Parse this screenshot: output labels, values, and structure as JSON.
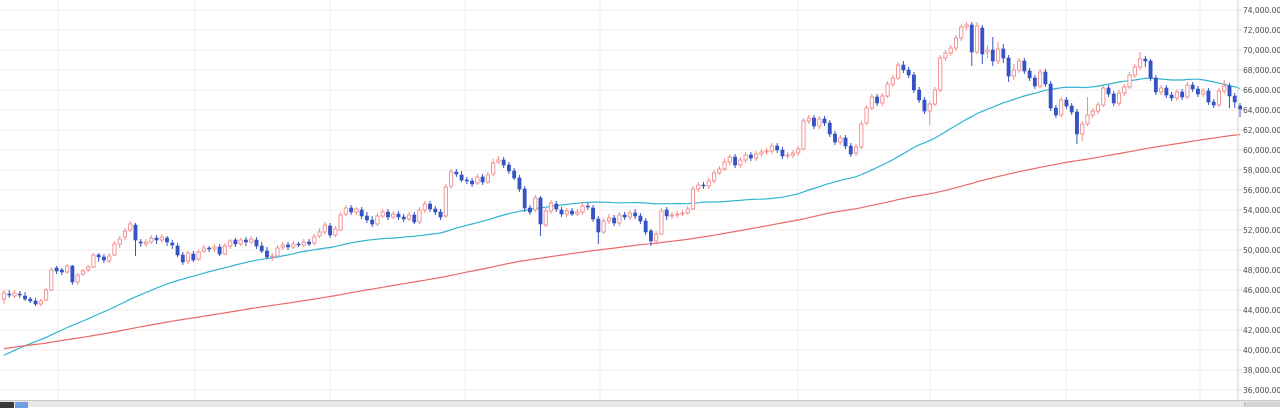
{
  "chart_data": {
    "type": "candlestick",
    "title": "",
    "xlabel": "",
    "ylabel": "",
    "ylim": [
      35600,
      74600
    ],
    "y_ticks": [
      "36,000.00",
      "38,000.00",
      "40,000.00",
      "42,000.00",
      "44,000.00",
      "46,000.00",
      "48,000.00",
      "50,000.00",
      "52,000.00",
      "54,000.00",
      "56,000.00",
      "58,000.00",
      "60,000.00",
      "62,000.00",
      "64,000.00",
      "66,000.00",
      "68,000.00",
      "70,000.00",
      "72,000.00",
      "74,000.00"
    ],
    "grid": true,
    "legend": "none",
    "candles": [
      [
        45.1,
        45.7,
        46.0,
        44.6
      ],
      [
        45.6,
        45.5,
        46.0,
        45.2
      ],
      [
        45.4,
        45.7,
        46.0,
        45.2
      ],
      [
        45.6,
        45.5,
        45.9,
        45.2
      ],
      [
        45.4,
        45.1,
        45.8,
        44.9
      ],
      [
        45.1,
        44.9,
        45.3,
        44.7
      ],
      [
        44.9,
        44.6,
        45.2,
        44.4
      ],
      [
        44.6,
        44.9,
        45.1,
        44.4
      ],
      [
        45.0,
        46.0,
        46.2,
        44.9
      ],
      [
        46.0,
        48.0,
        48.3,
        45.9
      ],
      [
        48.2,
        47.9,
        48.4,
        47.6
      ],
      [
        48.0,
        47.8,
        48.2,
        47.5
      ],
      [
        47.8,
        48.4,
        48.6,
        47.6
      ],
      [
        48.4,
        46.8,
        48.5,
        46.5
      ],
      [
        46.8,
        47.5,
        47.7,
        46.5
      ],
      [
        47.6,
        47.9,
        48.1,
        47.4
      ],
      [
        48.0,
        48.3,
        48.5,
        47.8
      ],
      [
        48.3,
        49.5,
        49.7,
        48.2
      ],
      [
        49.5,
        49.3,
        49.7,
        48.8
      ],
      [
        49.3,
        49.0,
        49.6,
        48.7
      ],
      [
        48.9,
        49.4,
        49.7,
        48.7
      ],
      [
        49.5,
        50.6,
        50.9,
        49.4
      ],
      [
        50.6,
        51.1,
        51.4,
        50.2
      ],
      [
        51.3,
        51.9,
        52.2,
        51.0
      ],
      [
        52.0,
        52.6,
        52.9,
        51.8
      ],
      [
        52.5,
        51.0,
        52.7,
        49.4
      ],
      [
        50.8,
        50.7,
        51.1,
        50.3
      ],
      [
        50.6,
        50.8,
        51.1,
        50.3
      ],
      [
        50.8,
        51.2,
        51.5,
        50.6
      ],
      [
        51.2,
        51.0,
        51.5,
        50.6
      ],
      [
        51.0,
        51.3,
        51.6,
        50.7
      ],
      [
        51.2,
        50.8,
        51.4,
        50.4
      ],
      [
        50.7,
        50.5,
        51.0,
        50.1
      ],
      [
        50.4,
        49.5,
        50.7,
        49.3
      ],
      [
        49.5,
        48.8,
        49.8,
        48.5
      ],
      [
        48.9,
        49.7,
        49.9,
        48.6
      ],
      [
        49.6,
        49.0,
        49.9,
        48.8
      ],
      [
        49.1,
        49.8,
        50.0,
        48.9
      ],
      [
        49.9,
        50.2,
        50.5,
        49.7
      ],
      [
        50.2,
        50.1,
        50.4,
        49.8
      ],
      [
        50.1,
        50.3,
        50.6,
        49.8
      ],
      [
        50.3,
        49.6,
        50.6,
        49.4
      ],
      [
        49.6,
        50.4,
        50.7,
        49.5
      ],
      [
        50.4,
        50.9,
        51.1,
        50.1
      ],
      [
        51.0,
        50.6,
        51.2,
        50.3
      ],
      [
        50.6,
        51.0,
        51.2,
        50.4
      ],
      [
        51.0,
        50.8,
        51.3,
        50.4
      ],
      [
        50.8,
        51.1,
        51.4,
        50.6
      ],
      [
        51.0,
        50.4,
        51.3,
        50.1
      ],
      [
        50.4,
        49.9,
        50.8,
        49.7
      ],
      [
        49.9,
        49.3,
        50.3,
        49.1
      ],
      [
        49.3,
        49.4,
        49.7,
        48.9
      ],
      [
        49.4,
        50.2,
        50.5,
        49.2
      ],
      [
        50.3,
        50.5,
        50.8,
        50.0
      ],
      [
        50.5,
        50.3,
        50.8,
        50.0
      ],
      [
        50.3,
        50.6,
        50.9,
        50.1
      ],
      [
        50.6,
        50.5,
        50.8,
        50.3
      ],
      [
        50.5,
        50.8,
        51.1,
        50.3
      ],
      [
        50.8,
        50.6,
        51.1,
        50.4
      ],
      [
        50.7,
        51.3,
        51.6,
        50.5
      ],
      [
        51.4,
        51.8,
        52.2,
        51.2
      ],
      [
        51.8,
        52.5,
        52.8,
        51.6
      ],
      [
        52.4,
        51.5,
        52.7,
        51.2
      ],
      [
        51.5,
        52.1,
        52.4,
        51.3
      ],
      [
        52.0,
        53.5,
        53.8,
        51.9
      ],
      [
        53.6,
        54.2,
        54.5,
        53.4
      ],
      [
        54.2,
        53.8,
        54.5,
        53.5
      ],
      [
        53.8,
        54.1,
        54.3,
        53.5
      ],
      [
        54.0,
        53.4,
        54.3,
        53.1
      ],
      [
        53.4,
        53.0,
        53.8,
        52.7
      ],
      [
        53.0,
        52.6,
        53.4,
        52.3
      ],
      [
        52.6,
        53.4,
        53.7,
        52.4
      ],
      [
        53.4,
        53.8,
        54.1,
        53.2
      ],
      [
        53.8,
        53.3,
        54.1,
        53.0
      ],
      [
        53.3,
        53.6,
        53.9,
        53.1
      ],
      [
        53.6,
        53.3,
        53.9,
        53.0
      ],
      [
        53.3,
        53.1,
        53.6,
        52.8
      ],
      [
        53.1,
        53.5,
        53.8,
        52.9
      ],
      [
        53.5,
        52.8,
        53.8,
        52.6
      ],
      [
        52.8,
        54.0,
        54.3,
        52.6
      ],
      [
        54.0,
        54.6,
        54.9,
        53.7
      ],
      [
        54.6,
        54.1,
        54.9,
        53.8
      ],
      [
        54.1,
        53.8,
        54.4,
        53.5
      ],
      [
        53.8,
        53.3,
        54.1,
        53.0
      ],
      [
        53.4,
        56.3,
        56.6,
        53.2
      ],
      [
        56.4,
        57.8,
        58.1,
        56.1
      ],
      [
        57.8,
        57.6,
        58.1,
        57.3
      ],
      [
        57.5,
        57.0,
        57.9,
        56.8
      ],
      [
        57.0,
        56.9,
        57.3,
        56.6
      ],
      [
        56.9,
        56.6,
        57.2,
        56.3
      ],
      [
        56.7,
        57.3,
        57.6,
        56.5
      ],
      [
        57.3,
        56.8,
        57.6,
        56.5
      ],
      [
        56.8,
        57.5,
        57.8,
        56.6
      ],
      [
        57.6,
        58.7,
        59.1,
        57.4
      ],
      [
        58.8,
        59.0,
        59.4,
        58.6
      ],
      [
        59.0,
        58.5,
        59.3,
        58.2
      ],
      [
        58.5,
        57.9,
        58.8,
        57.6
      ],
      [
        57.9,
        57.2,
        58.2,
        57.0
      ],
      [
        57.2,
        56.1,
        57.5,
        55.8
      ],
      [
        56.1,
        54.2,
        56.4,
        53.8
      ],
      [
        54.2,
        53.8,
        54.5,
        53.5
      ],
      [
        54.0,
        55.2,
        55.5,
        53.8
      ],
      [
        55.2,
        52.6,
        55.4,
        51.4
      ],
      [
        52.5,
        53.9,
        54.3,
        52.3
      ],
      [
        53.9,
        54.7,
        55.0,
        53.6
      ],
      [
        54.6,
        54.1,
        54.9,
        53.8
      ],
      [
        54.0,
        53.6,
        54.3,
        53.3
      ],
      [
        53.6,
        53.9,
        54.2,
        53.3
      ],
      [
        53.9,
        53.6,
        54.2,
        53.4
      ],
      [
        53.6,
        53.8,
        54.1,
        53.4
      ],
      [
        53.8,
        54.4,
        54.7,
        53.5
      ],
      [
        54.4,
        54.3,
        54.7,
        54.0
      ],
      [
        54.2,
        53.1,
        54.5,
        52.8
      ],
      [
        53.1,
        51.8,
        53.4,
        50.6
      ],
      [
        51.8,
        52.9,
        53.2,
        51.6
      ],
      [
        52.9,
        53.2,
        53.6,
        52.6
      ],
      [
        53.2,
        52.7,
        53.5,
        52.4
      ],
      [
        52.7,
        53.5,
        53.8,
        52.4
      ],
      [
        53.5,
        53.3,
        53.8,
        53.0
      ],
      [
        53.3,
        53.7,
        54.0,
        53.0
      ],
      [
        53.7,
        53.4,
        54.1,
        53.1
      ],
      [
        53.4,
        52.9,
        53.7,
        52.6
      ],
      [
        52.9,
        51.8,
        53.2,
        51.5
      ],
      [
        51.9,
        50.9,
        52.1,
        50.4
      ],
      [
        50.9,
        51.6,
        51.9,
        50.6
      ],
      [
        51.6,
        53.9,
        54.2,
        51.5
      ],
      [
        54.0,
        53.4,
        54.3,
        53.0
      ],
      [
        53.4,
        53.5,
        53.8,
        53.1
      ],
      [
        53.5,
        53.6,
        53.9,
        53.2
      ],
      [
        53.6,
        53.7,
        54.0,
        53.4
      ],
      [
        53.7,
        54.1,
        54.4,
        53.5
      ],
      [
        54.1,
        56.1,
        56.4,
        54.0
      ],
      [
        56.1,
        56.5,
        56.8,
        55.8
      ],
      [
        56.5,
        56.4,
        56.8,
        56.1
      ],
      [
        56.4,
        56.9,
        57.2,
        56.1
      ],
      [
        56.9,
        57.7,
        58.0,
        56.7
      ],
      [
        57.7,
        58.1,
        58.4,
        57.5
      ],
      [
        58.1,
        58.8,
        59.2,
        57.9
      ],
      [
        58.8,
        59.3,
        59.6,
        58.5
      ],
      [
        59.3,
        58.5,
        59.6,
        58.2
      ],
      [
        58.5,
        59.0,
        59.3,
        58.2
      ],
      [
        59.0,
        59.5,
        59.8,
        58.7
      ],
      [
        59.5,
        59.2,
        59.8,
        58.9
      ],
      [
        59.2,
        59.6,
        59.9,
        58.9
      ],
      [
        59.6,
        59.8,
        60.1,
        59.3
      ],
      [
        59.8,
        59.9,
        60.2,
        59.5
      ],
      [
        59.9,
        60.4,
        60.7,
        59.6
      ],
      [
        60.4,
        60.0,
        60.7,
        59.7
      ],
      [
        60.0,
        59.4,
        60.3,
        59.1
      ],
      [
        59.4,
        59.5,
        59.8,
        59.1
      ],
      [
        59.5,
        59.7,
        60.0,
        59.2
      ],
      [
        59.7,
        60.1,
        60.4,
        59.4
      ],
      [
        60.1,
        62.9,
        63.2,
        60.0
      ],
      [
        62.9,
        63.2,
        63.5,
        62.6
      ],
      [
        63.2,
        62.4,
        63.5,
        62.1
      ],
      [
        62.4,
        63.1,
        63.4,
        62.1
      ],
      [
        63.1,
        62.7,
        63.4,
        62.4
      ],
      [
        62.7,
        61.6,
        63.0,
        61.3
      ],
      [
        61.6,
        60.8,
        61.9,
        60.5
      ],
      [
        60.8,
        61.2,
        61.5,
        60.5
      ],
      [
        61.2,
        60.4,
        61.5,
        60.1
      ],
      [
        60.4,
        59.6,
        60.7,
        59.3
      ],
      [
        59.7,
        60.3,
        60.6,
        59.4
      ],
      [
        60.3,
        62.6,
        62.9,
        60.1
      ],
      [
        62.7,
        64.2,
        64.5,
        62.5
      ],
      [
        64.2,
        65.3,
        65.6,
        64.0
      ],
      [
        65.3,
        64.7,
        65.6,
        64.4
      ],
      [
        64.7,
        65.4,
        65.7,
        64.4
      ],
      [
        65.4,
        66.6,
        66.9,
        65.2
      ],
      [
        66.6,
        67.2,
        67.5,
        66.3
      ],
      [
        67.2,
        68.5,
        68.8,
        67.0
      ],
      [
        68.5,
        68.0,
        68.9,
        67.7
      ],
      [
        68.0,
        67.5,
        68.3,
        67.2
      ],
      [
        67.5,
        66.0,
        67.8,
        65.7
      ],
      [
        66.0,
        65.0,
        66.3,
        64.7
      ],
      [
        65.0,
        63.9,
        65.3,
        63.6
      ],
      [
        63.9,
        64.6,
        64.9,
        62.5
      ],
      [
        64.6,
        66.0,
        66.3,
        64.4
      ],
      [
        66.0,
        69.2,
        69.5,
        65.8
      ],
      [
        69.2,
        69.7,
        70.0,
        68.9
      ],
      [
        69.7,
        70.2,
        70.5,
        69.4
      ],
      [
        70.2,
        71.2,
        71.5,
        69.9
      ],
      [
        71.2,
        72.3,
        72.6,
        70.9
      ],
      [
        72.3,
        72.5,
        72.8,
        72.0
      ],
      [
        72.5,
        69.8,
        72.8,
        68.4
      ],
      [
        69.8,
        72.4,
        72.8,
        69.6
      ],
      [
        72.2,
        69.6,
        72.5,
        68.6
      ],
      [
        69.8,
        70.0,
        70.5,
        69.2
      ],
      [
        70.0,
        68.9,
        71.3,
        68.4
      ],
      [
        68.9,
        70.1,
        70.8,
        68.6
      ],
      [
        70.1,
        69.2,
        70.6,
        68.7
      ],
      [
        69.2,
        67.4,
        69.5,
        66.8
      ],
      [
        67.4,
        68.0,
        68.6,
        67.0
      ],
      [
        68.0,
        68.9,
        69.2,
        67.7
      ],
      [
        68.9,
        67.9,
        69.2,
        67.6
      ],
      [
        67.9,
        67.2,
        68.2,
        66.9
      ],
      [
        67.2,
        66.4,
        67.5,
        66.1
      ],
      [
        66.4,
        67.8,
        68.1,
        66.2
      ],
      [
        67.8,
        66.6,
        68.1,
        66.3
      ],
      [
        66.6,
        64.2,
        66.9,
        63.9
      ],
      [
        64.2,
        63.5,
        64.5,
        63.2
      ],
      [
        63.5,
        65.0,
        65.3,
        63.3
      ],
      [
        65.0,
        64.4,
        65.3,
        64.1
      ],
      [
        64.4,
        63.8,
        64.7,
        63.5
      ],
      [
        63.8,
        61.6,
        64.1,
        60.6
      ],
      [
        61.6,
        62.6,
        62.9,
        60.9
      ],
      [
        62.6,
        63.5,
        65.3,
        62.4
      ],
      [
        63.5,
        63.9,
        64.2,
        63.2
      ],
      [
        63.9,
        64.5,
        64.8,
        63.6
      ],
      [
        64.5,
        66.2,
        66.5,
        64.3
      ],
      [
        66.2,
        65.6,
        66.5,
        65.3
      ],
      [
        65.6,
        64.7,
        65.9,
        64.4
      ],
      [
        64.7,
        65.7,
        66.0,
        64.4
      ],
      [
        65.7,
        66.3,
        66.6,
        65.4
      ],
      [
        66.3,
        67.5,
        67.8,
        66.1
      ],
      [
        67.5,
        68.3,
        68.6,
        67.2
      ],
      [
        68.3,
        69.1,
        69.8,
        68.0
      ],
      [
        69.1,
        68.9,
        69.4,
        68.3
      ],
      [
        68.9,
        67.2,
        69.1,
        66.9
      ],
      [
        67.2,
        65.8,
        67.5,
        65.5
      ],
      [
        65.8,
        66.2,
        66.5,
        65.5
      ],
      [
        66.2,
        65.5,
        66.5,
        65.2
      ],
      [
        65.5,
        65.2,
        65.8,
        64.9
      ],
      [
        65.2,
        65.8,
        66.1,
        64.9
      ],
      [
        65.8,
        65.3,
        66.1,
        65.0
      ],
      [
        65.3,
        66.5,
        66.8,
        65.1
      ],
      [
        66.5,
        66.1,
        66.8,
        65.8
      ],
      [
        66.1,
        65.6,
        66.4,
        65.3
      ],
      [
        65.6,
        65.9,
        66.2,
        65.3
      ],
      [
        65.9,
        64.8,
        66.2,
        64.5
      ],
      [
        64.8,
        64.5,
        65.1,
        64.2
      ],
      [
        64.5,
        65.9,
        66.2,
        64.3
      ],
      [
        65.9,
        66.4,
        67.0,
        65.6
      ],
      [
        66.4,
        65.4,
        66.7,
        64.2
      ],
      [
        65.4,
        64.8,
        65.7,
        64.2
      ],
      [
        64.4,
        64.0,
        64.7,
        63.3
      ]
    ],
    "series": [],
    "colors": {
      "up": "#f28b8b",
      "down": "#3553c4",
      "ma_short": "#32b4cf",
      "ma_long": "#e96a6a",
      "grid": "#efefef",
      "axis_line": "#d6d6d6",
      "tick_text": "#4a4a4a"
    }
  },
  "ui": {
    "bottom_strip": {
      "scroll_thumb_icon": "scroll-thumb"
    }
  }
}
